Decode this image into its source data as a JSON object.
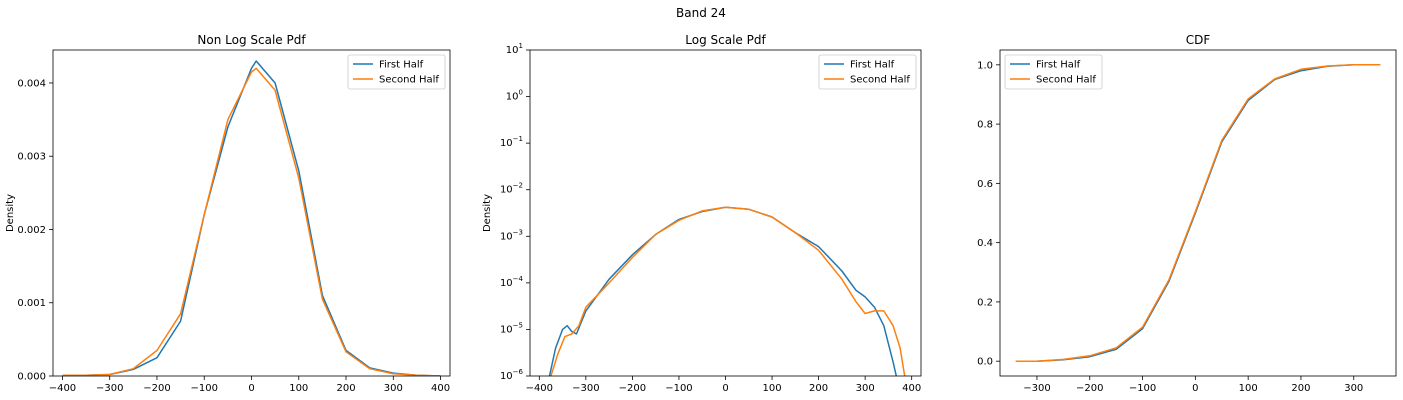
{
  "figure": {
    "suptitle": "Band 24"
  },
  "chart_data": [
    {
      "type": "line",
      "title": "Non Log Scale Pdf",
      "xlabel": "",
      "ylabel": "Density",
      "xlim": [
        -420,
        420
      ],
      "ylim": [
        0,
        0.00445
      ],
      "xticks": [
        -400,
        -300,
        -200,
        -100,
        0,
        100,
        200,
        300,
        400
      ],
      "xtick_labels": [
        "−400",
        "−300",
        "−200",
        "−100",
        "0",
        "100",
        "200",
        "300",
        "400"
      ],
      "yticks": [
        0,
        0.001,
        0.002,
        0.003,
        0.004
      ],
      "ytick_labels": [
        "0.000",
        "0.001",
        "0.002",
        "0.003",
        "0.004"
      ],
      "yscale": "linear",
      "legend": "top-right",
      "series": [
        {
          "name": "First Half",
          "color": "#1f77b4",
          "points": [
            [
              -400,
              1e-05
            ],
            [
              -350,
              1e-05
            ],
            [
              -300,
              2e-05
            ],
            [
              -250,
              9e-05
            ],
            [
              -200,
              0.00025
            ],
            [
              -150,
              0.00075
            ],
            [
              -100,
              0.0022
            ],
            [
              -50,
              0.0034
            ],
            [
              0,
              0.0042
            ],
            [
              10,
              0.0043
            ],
            [
              50,
              0.004
            ],
            [
              100,
              0.0028
            ],
            [
              150,
              0.0011
            ],
            [
              200,
              0.00035
            ],
            [
              250,
              0.00011
            ],
            [
              300,
              4e-05
            ],
            [
              350,
              1e-05
            ],
            [
              400,
              0.0
            ]
          ]
        },
        {
          "name": "Second Half",
          "color": "#ff7f0e",
          "points": [
            [
              -400,
              1e-05
            ],
            [
              -350,
              1e-05
            ],
            [
              -300,
              2e-05
            ],
            [
              -250,
              0.0001
            ],
            [
              -200,
              0.00035
            ],
            [
              -150,
              0.00085
            ],
            [
              -100,
              0.0022
            ],
            [
              -50,
              0.0035
            ],
            [
              0,
              0.00415
            ],
            [
              10,
              0.0042
            ],
            [
              50,
              0.0039
            ],
            [
              100,
              0.0027
            ],
            [
              150,
              0.00105
            ],
            [
              200,
              0.00033
            ],
            [
              250,
              0.0001
            ],
            [
              300,
              3e-05
            ],
            [
              350,
              1e-05
            ],
            [
              400,
              0.0
            ]
          ]
        }
      ]
    },
    {
      "type": "line",
      "title": "Log Scale Pdf",
      "xlabel": "",
      "ylabel": "Density",
      "xlim": [
        -420,
        420
      ],
      "ylim": [
        1e-06,
        10
      ],
      "xticks": [
        -400,
        -300,
        -200,
        -100,
        0,
        100,
        200,
        300,
        400
      ],
      "xtick_labels": [
        "−400",
        "−300",
        "−200",
        "−100",
        "0",
        "100",
        "200",
        "300",
        "400"
      ],
      "yticks": [
        1e-06,
        1e-05,
        0.0001,
        0.001,
        0.01,
        0.1,
        1,
        10
      ],
      "ytick_exponents": [
        "−6",
        "−5",
        "−4",
        "−3",
        "−2",
        "−1",
        "0",
        "1"
      ],
      "yscale": "log",
      "legend": "top-right",
      "series": [
        {
          "name": "First Half",
          "color": "#1f77b4",
          "points": [
            [
              -378,
              1e-06
            ],
            [
              -365,
              4e-06
            ],
            [
              -350,
              1e-05
            ],
            [
              -340,
              1.2e-05
            ],
            [
              -330,
              9e-06
            ],
            [
              -320,
              8e-06
            ],
            [
              -300,
              2.5e-05
            ],
            [
              -250,
              0.00012
            ],
            [
              -200,
              0.0004
            ],
            [
              -150,
              0.0011
            ],
            [
              -100,
              0.0023
            ],
            [
              -50,
              0.0034
            ],
            [
              0,
              0.0042
            ],
            [
              50,
              0.0038
            ],
            [
              100,
              0.0026
            ],
            [
              150,
              0.0012
            ],
            [
              200,
              0.0006
            ],
            [
              250,
              0.00018
            ],
            [
              280,
              7e-05
            ],
            [
              300,
              5e-05
            ],
            [
              320,
              3e-05
            ],
            [
              340,
              1.2e-05
            ],
            [
              360,
              2e-06
            ],
            [
              367,
              1e-06
            ]
          ]
        },
        {
          "name": "Second Half",
          "color": "#ff7f0e",
          "points": [
            [
              -375,
              1e-06
            ],
            [
              -360,
              3e-06
            ],
            [
              -345,
              7e-06
            ],
            [
              -330,
              8e-06
            ],
            [
              -315,
              1.2e-05
            ],
            [
              -300,
              3e-05
            ],
            [
              -250,
              0.0001
            ],
            [
              -200,
              0.00035
            ],
            [
              -150,
              0.0011
            ],
            [
              -100,
              0.0022
            ],
            [
              -50,
              0.0035
            ],
            [
              0,
              0.0042
            ],
            [
              50,
              0.0038
            ],
            [
              100,
              0.0026
            ],
            [
              150,
              0.0012
            ],
            [
              200,
              0.0005
            ],
            [
              250,
              0.00012
            ],
            [
              280,
              4e-05
            ],
            [
              300,
              2.2e-05
            ],
            [
              320,
              2.5e-05
            ],
            [
              340,
              2.5e-05
            ],
            [
              360,
              1.2e-05
            ],
            [
              375,
              4e-06
            ],
            [
              385,
              1e-06
            ]
          ]
        }
      ]
    },
    {
      "type": "line",
      "title": "CDF",
      "xlabel": "",
      "ylabel": "",
      "xlim": [
        -370,
        380
      ],
      "ylim": [
        -0.05,
        1.05
      ],
      "xticks": [
        -300,
        -200,
        -100,
        0,
        100,
        200,
        300
      ],
      "xtick_labels": [
        "−300",
        "−200",
        "−100",
        "0",
        "100",
        "200",
        "300"
      ],
      "yticks": [
        0,
        0.2,
        0.4,
        0.6,
        0.8,
        1.0
      ],
      "ytick_labels": [
        "0.0",
        "0.2",
        "0.4",
        "0.6",
        "0.8",
        "1.0"
      ],
      "yscale": "linear",
      "legend": "top-left",
      "series": [
        {
          "name": "First Half",
          "color": "#1f77b4",
          "points": [
            [
              -340,
              0.0
            ],
            [
              -300,
              0.0
            ],
            [
              -250,
              0.005
            ],
            [
              -200,
              0.015
            ],
            [
              -150,
              0.04
            ],
            [
              -100,
              0.11
            ],
            [
              -50,
              0.27
            ],
            [
              0,
              0.5
            ],
            [
              50,
              0.74
            ],
            [
              100,
              0.88
            ],
            [
              150,
              0.95
            ],
            [
              200,
              0.98
            ],
            [
              250,
              0.995
            ],
            [
              300,
              1.0
            ],
            [
              350,
              1.0
            ]
          ]
        },
        {
          "name": "Second Half",
          "color": "#ff7f0e",
          "points": [
            [
              -340,
              0.0
            ],
            [
              -300,
              0.0
            ],
            [
              -250,
              0.006
            ],
            [
              -200,
              0.018
            ],
            [
              -150,
              0.045
            ],
            [
              -100,
              0.115
            ],
            [
              -50,
              0.275
            ],
            [
              0,
              0.505
            ],
            [
              50,
              0.745
            ],
            [
              100,
              0.885
            ],
            [
              150,
              0.952
            ],
            [
              200,
              0.985
            ],
            [
              250,
              0.996
            ],
            [
              300,
              1.0
            ],
            [
              350,
              1.0
            ]
          ]
        }
      ]
    }
  ]
}
